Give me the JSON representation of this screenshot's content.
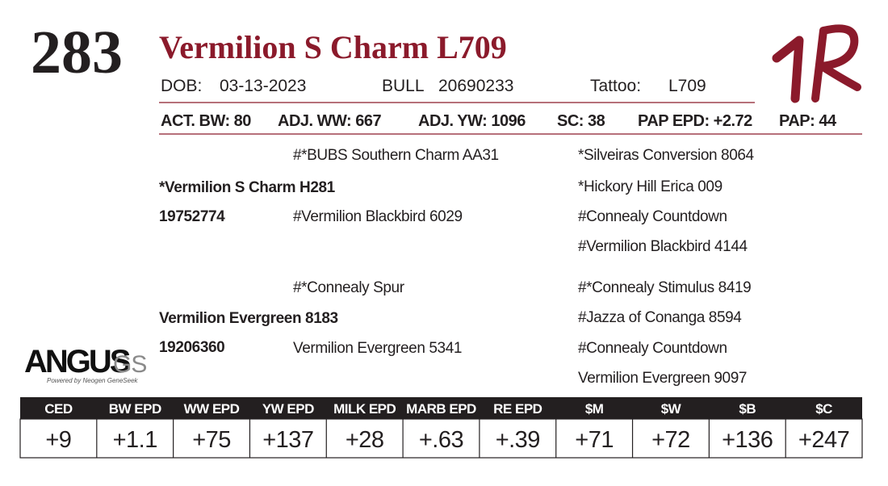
{
  "lot": "283",
  "name": "Vermilion S Charm L709",
  "info": {
    "dob_label": "DOB:",
    "dob": "03-13-2023",
    "sex": "BULL",
    "registration": "20690233",
    "tattoo_label": "Tattoo:",
    "tattoo": "L709"
  },
  "stats": [
    "ACT. BW: 80",
    "ADJ. WW: 667",
    "ADJ. YW: 1096",
    "SC: 38",
    "PAP EPD: +2.72",
    "PAP: 44"
  ],
  "pedigree": {
    "sire": {
      "name": "*Vermilion S Charm H281",
      "registration": "19752774",
      "sire": "#*BUBS Southern Charm AA31",
      "dam": "#Vermilion Blackbird 6029",
      "grandparents": [
        "*Silveiras Conversion 8064",
        "*Hickory Hill Erica 009",
        "#Connealy Countdown",
        "#Vermilion Blackbird 4144"
      ]
    },
    "dam": {
      "name": "Vermilion Evergreen 8183",
      "registration": "19206360",
      "sire": "#*Connealy Spur",
      "dam": "Vermilion Evergreen 5341",
      "grandparents": [
        "#*Connealy Stimulus 8419",
        "#Jazza of Conanga 8594",
        "#Connealy Countdown",
        "Vermilion Evergreen 9097"
      ]
    }
  },
  "logo": {
    "main": "ANGUS",
    "suffix": "GS",
    "tagline": "Powered by Neogen GeneSeek"
  },
  "epd_table": {
    "headers": [
      "CED",
      "BW EPD",
      "WW EPD",
      "YW EPD",
      "MILK EPD",
      "MARB EPD",
      "RE EPD",
      "$M",
      "$W",
      "$B",
      "$C"
    ],
    "values": [
      "+9",
      "+1.1",
      "+75",
      "+137",
      "+28",
      "+.63",
      "+.39",
      "+71",
      "+72",
      "+136",
      "+247"
    ]
  }
}
